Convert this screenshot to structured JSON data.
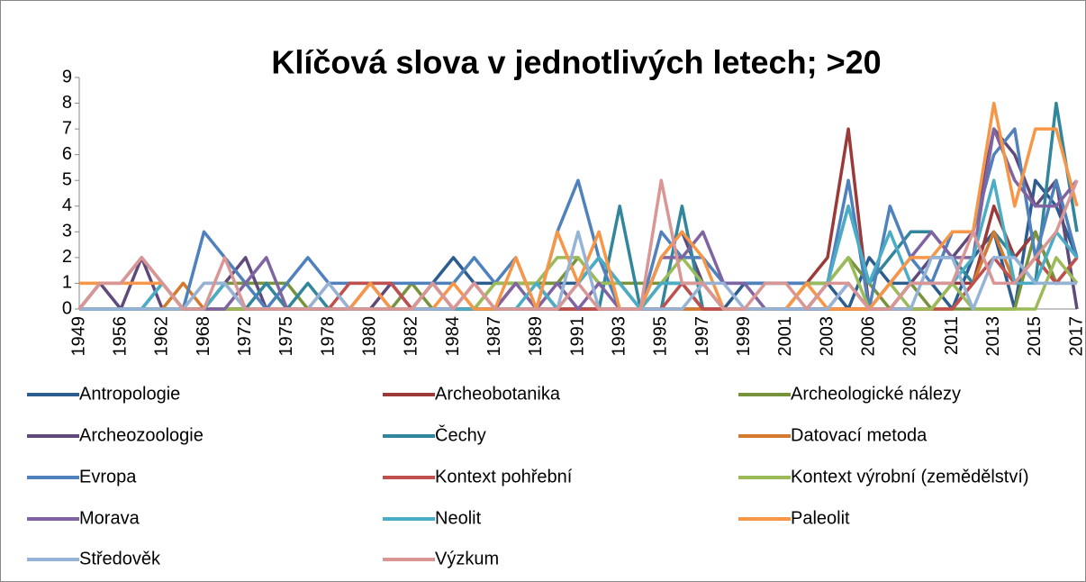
{
  "chart_data": {
    "type": "line",
    "title": "Klíčová slova v jednotlivých letech; >20",
    "categories": [
      "1949",
      null,
      "1956",
      null,
      "1962",
      null,
      "1968",
      null,
      "1972",
      null,
      "1975",
      null,
      "1978",
      null,
      "1980",
      null,
      "1982",
      null,
      "1984",
      null,
      "1987",
      null,
      "1989",
      null,
      "1991",
      null,
      "1993",
      null,
      "1995",
      null,
      "1997",
      null,
      "1999",
      null,
      "2001",
      null,
      "2003",
      null,
      "2006",
      null,
      "2009",
      null,
      "2011",
      null,
      "2013",
      null,
      "2015",
      null,
      "2017"
    ],
    "ylim": [
      0,
      9
    ],
    "yticks": [
      0,
      1,
      2,
      3,
      4,
      5,
      6,
      7,
      8,
      9
    ],
    "grid": false,
    "series": [
      {
        "name": "Antropologie",
        "color": "#2c5d8f",
        "values": [
          0,
          0,
          0,
          0,
          0,
          0,
          0,
          0,
          0,
          0,
          0,
          0,
          0,
          0,
          0,
          0,
          0,
          1,
          2,
          1,
          1,
          1,
          1,
          1,
          1,
          2,
          1,
          0,
          1,
          1,
          0,
          0,
          1,
          1,
          1,
          1,
          1,
          0,
          2,
          1,
          1,
          1,
          0,
          2,
          3,
          0,
          5,
          4,
          2
        ]
      },
      {
        "name": "Archeobotanika",
        "color": "#9b3a38",
        "values": [
          0,
          0,
          0,
          0,
          0,
          0,
          0,
          0,
          0,
          0,
          0,
          0,
          0,
          0,
          0,
          0,
          0,
          0,
          0,
          0,
          0,
          0,
          0,
          0,
          0,
          0,
          0,
          0,
          0,
          0,
          0,
          0,
          0,
          0,
          0,
          1,
          2,
          7,
          0,
          0,
          0,
          0,
          1,
          1,
          4,
          2,
          3,
          1,
          2
        ]
      },
      {
        "name": "Archeologické nálezy",
        "color": "#77933c",
        "values": [
          0,
          0,
          0,
          0,
          0,
          0,
          0,
          1,
          1,
          1,
          1,
          0,
          0,
          0,
          0,
          0,
          1,
          0,
          0,
          0,
          1,
          1,
          1,
          1,
          2,
          1,
          1,
          1,
          1,
          1,
          1,
          0,
          0,
          0,
          0,
          1,
          1,
          2,
          1,
          0,
          1,
          0,
          0,
          0,
          0,
          0,
          3,
          1,
          1
        ]
      },
      {
        "name": "Archeozoologie",
        "color": "#604a7b",
        "values": [
          0,
          1,
          0,
          2,
          0,
          0,
          0,
          1,
          2,
          0,
          0,
          0,
          0,
          0,
          0,
          1,
          0,
          0,
          0,
          0,
          0,
          1,
          1,
          0,
          0,
          0,
          0,
          0,
          2,
          3,
          1,
          0,
          0,
          0,
          0,
          0,
          0,
          0,
          0,
          0,
          1,
          2,
          2,
          3,
          7,
          6,
          4,
          5,
          0
        ]
      },
      {
        "name": "Čechy",
        "color": "#31869b",
        "values": [
          0,
          0,
          0,
          0,
          1,
          0,
          0,
          0,
          0,
          1,
          0,
          1,
          0,
          0,
          0,
          0,
          0,
          0,
          0,
          0,
          0,
          0,
          0,
          0,
          0,
          0,
          4,
          0,
          0,
          4,
          0,
          0,
          0,
          0,
          0,
          0,
          1,
          4,
          1,
          2,
          3,
          3,
          2,
          1,
          3,
          2,
          1,
          8,
          3
        ]
      },
      {
        "name": "Datovací metoda",
        "color": "#d47a2e",
        "values": [
          0,
          0,
          0,
          0,
          0,
          1,
          0,
          0,
          0,
          0,
          0,
          0,
          0,
          0,
          0,
          0,
          0,
          0,
          0,
          1,
          0,
          1,
          1,
          0,
          0,
          0,
          0,
          0,
          0,
          0,
          0,
          0,
          0,
          0,
          0,
          0,
          0,
          0,
          0,
          0,
          0,
          0,
          0,
          1,
          3,
          1,
          2,
          1,
          2
        ]
      },
      {
        "name": "Evropa",
        "color": "#4f81bd",
        "values": [
          0,
          0,
          0,
          0,
          0,
          0,
          3,
          2,
          1,
          0,
          1,
          2,
          1,
          1,
          1,
          1,
          1,
          1,
          1,
          2,
          1,
          2,
          0,
          3,
          5,
          2,
          0,
          0,
          3,
          2,
          2,
          1,
          1,
          1,
          1,
          1,
          1,
          5,
          0,
          4,
          2,
          1,
          3,
          3,
          6,
          7,
          2,
          5,
          2
        ]
      },
      {
        "name": "Kontext pohřební",
        "color": "#c0504d",
        "values": [
          0,
          0,
          0,
          0,
          0,
          0,
          0,
          0,
          0,
          0,
          0,
          0,
          0,
          1,
          1,
          1,
          0,
          0,
          0,
          0,
          0,
          0,
          0,
          0,
          0,
          0,
          0,
          0,
          0,
          1,
          0,
          0,
          0,
          0,
          0,
          0,
          0,
          0,
          0,
          0,
          0,
          0,
          0,
          1,
          2,
          1,
          2,
          1,
          2
        ]
      },
      {
        "name": "Kontext výrobní (zemědělství)",
        "color": "#9bbb59",
        "values": [
          0,
          0,
          0,
          0,
          0,
          0,
          0,
          0,
          0,
          0,
          0,
          0,
          0,
          0,
          0,
          0,
          0,
          1,
          0,
          0,
          1,
          1,
          1,
          2,
          2,
          1,
          1,
          0,
          1,
          2,
          1,
          0,
          0,
          0,
          0,
          1,
          1,
          2,
          0,
          1,
          0,
          0,
          1,
          0,
          0,
          0,
          0,
          2,
          1
        ]
      },
      {
        "name": "Morava",
        "color": "#8064a2",
        "values": [
          0,
          1,
          1,
          2,
          1,
          0,
          0,
          0,
          1,
          2,
          0,
          0,
          0,
          0,
          1,
          0,
          0,
          1,
          0,
          0,
          0,
          1,
          0,
          1,
          0,
          1,
          0,
          0,
          2,
          2,
          3,
          1,
          1,
          0,
          0,
          0,
          0,
          1,
          0,
          1,
          2,
          3,
          2,
          2,
          7,
          5,
          4,
          4,
          5
        ]
      },
      {
        "name": "Neolit",
        "color": "#4bacc6",
        "values": [
          0,
          0,
          0,
          0,
          1,
          0,
          0,
          1,
          0,
          0,
          0,
          0,
          0,
          0,
          0,
          0,
          0,
          0,
          0,
          0,
          0,
          0,
          1,
          0,
          1,
          2,
          1,
          0,
          1,
          1,
          1,
          0,
          0,
          0,
          0,
          0,
          1,
          4,
          1,
          3,
          1,
          1,
          1,
          2,
          5,
          1,
          1,
          3,
          2
        ]
      },
      {
        "name": "Paleolit",
        "color": "#f79646",
        "values": [
          1,
          1,
          1,
          1,
          1,
          0,
          1,
          1,
          0,
          0,
          0,
          0,
          1,
          0,
          1,
          0,
          0,
          0,
          1,
          0,
          0,
          2,
          0,
          3,
          1,
          3,
          0,
          0,
          2,
          3,
          2,
          0,
          0,
          0,
          0,
          1,
          0,
          0,
          0,
          1,
          2,
          2,
          3,
          3,
          8,
          4,
          7,
          7,
          4
        ]
      },
      {
        "name": "Středověk",
        "color": "#95b3d7",
        "values": [
          0,
          0,
          0,
          0,
          0,
          0,
          1,
          1,
          0,
          0,
          0,
          0,
          1,
          0,
          0,
          0,
          0,
          0,
          0,
          1,
          0,
          0,
          0,
          0,
          3,
          0,
          0,
          0,
          0,
          0,
          1,
          1,
          0,
          0,
          0,
          0,
          0,
          1,
          0,
          0,
          0,
          2,
          2,
          0,
          2,
          2,
          1,
          1,
          1
        ]
      },
      {
        "name": "Výzkum",
        "color": "#d99694",
        "values": [
          0,
          1,
          1,
          2,
          1,
          0,
          0,
          2,
          0,
          0,
          0,
          0,
          0,
          0,
          0,
          0,
          0,
          1,
          0,
          1,
          0,
          0,
          0,
          0,
          1,
          0,
          0,
          0,
          5,
          1,
          1,
          0,
          0,
          1,
          1,
          0,
          1,
          1,
          0,
          0,
          1,
          1,
          1,
          3,
          1,
          1,
          2,
          3,
          5
        ]
      }
    ]
  }
}
